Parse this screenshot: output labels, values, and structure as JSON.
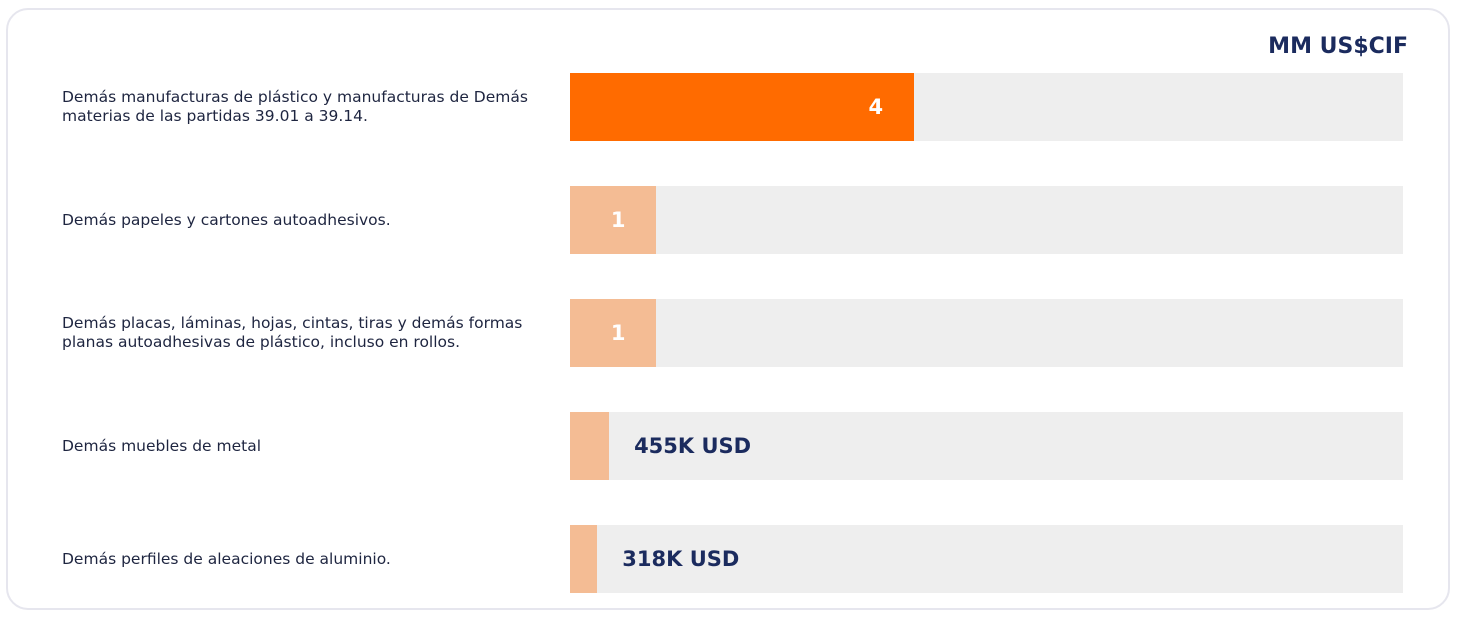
{
  "chart_data": {
    "type": "bar",
    "orientation": "horizontal",
    "title": "MM US$CIF",
    "categories": [
      "Demás manufacturas de plástico y manufacturas de Demás materias de las partidas 39.01 a 39.14.",
      "Demás papeles y cartones autoadhesivos.",
      "Demás placas, láminas, hojas, cintas, tiras y demás formas planas autoadhesivas de plástico, incluso en rollos.",
      "Demás muebles de metal",
      "Demás perfiles de aleaciones de aluminio."
    ],
    "values": [
      4,
      1,
      1,
      0.455,
      0.318
    ],
    "value_labels": [
      "4",
      "1",
      "1",
      "455K USD",
      "318K USD"
    ],
    "colors": [
      "#ff6b00",
      "#f4bc94",
      "#f4bc94",
      "#f4bc94",
      "#f4bc94"
    ],
    "track_color": "#eeeeee",
    "xlim": [
      0,
      9.7
    ]
  }
}
